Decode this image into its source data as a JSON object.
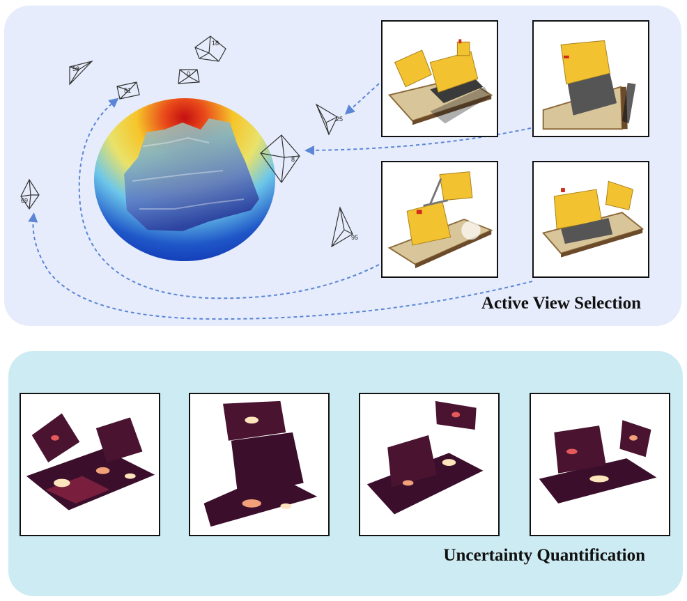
{
  "active_view_selection": {
    "title": "Active View Selection",
    "camera_labels": [
      "58",
      "18",
      "0",
      "51",
      "25",
      "8",
      "69",
      "95"
    ]
  },
  "uncertainty_quantification": {
    "title": "Uncertainty Quantification"
  },
  "colors": {
    "top_panel_bg": "#e6ecfb",
    "bottom_panel_bg": "#cdebf2",
    "arrow": "#5b86d6",
    "lego_yellow": "#f2c230",
    "heat_dark": "#3b0f2b",
    "heat_bright": "#fce4bc"
  }
}
